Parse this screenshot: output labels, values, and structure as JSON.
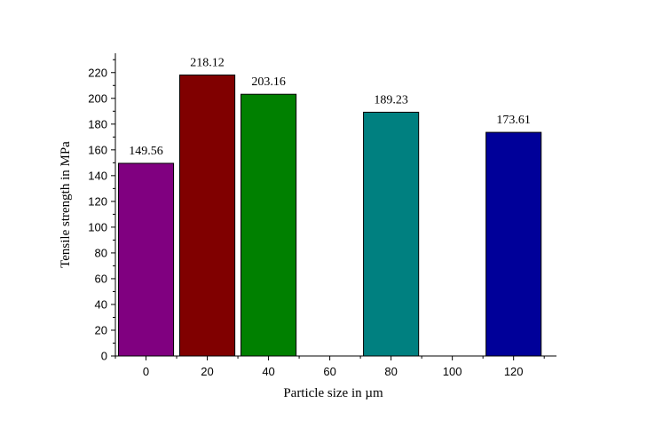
{
  "chart_data": {
    "type": "bar",
    "title": "",
    "xlabel": "Particle size in µm",
    "ylabel": "Tensile strength in MPa",
    "x_ticks": [
      "0",
      "20",
      "40",
      "60",
      "80",
      "100",
      "120"
    ],
    "x_range": [
      -10,
      134
    ],
    "ylim": [
      0,
      235
    ],
    "y_ticks": [
      0,
      20,
      40,
      60,
      80,
      100,
      120,
      140,
      160,
      180,
      200,
      220
    ],
    "grid": false,
    "legend": "none",
    "bars": [
      {
        "x": 0,
        "value": 149.56,
        "label": "149.56",
        "color": "#800080"
      },
      {
        "x": 20,
        "value": 218.12,
        "label": "218.12",
        "color": "#800000"
      },
      {
        "x": 40,
        "value": 203.16,
        "label": "203.16",
        "color": "#008000"
      },
      {
        "x": 80,
        "value": 189.23,
        "label": "189.23",
        "color": "#008080"
      },
      {
        "x": 120,
        "value": 173.61,
        "label": "173.61",
        "color": "#000099"
      }
    ]
  }
}
